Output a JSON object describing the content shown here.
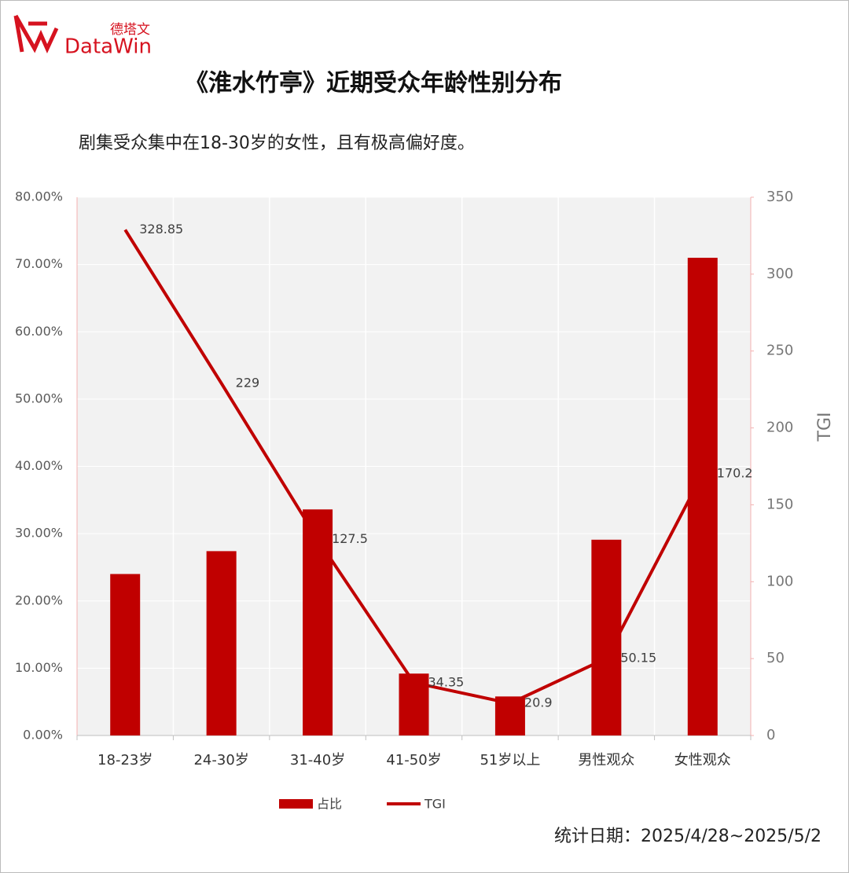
{
  "logo": {
    "cn": "德塔文",
    "en": "DataWin"
  },
  "chart_data": {
    "type": "bar_line",
    "title": "《淮水竹亭》近期受众年龄性别分布",
    "subtitle": "剧集受众集中在18-30岁的女性，且有极高偏好度。",
    "footnote": "统计日期：2025/4/28~2025/5/2",
    "categories": [
      "18-23岁",
      "24-30岁",
      "31-40岁",
      "41-50岁",
      "51岁以上",
      "男性观众",
      "女性观众"
    ],
    "series": [
      {
        "name": "占比",
        "type": "bar",
        "color": "#c00000",
        "values": [
          24.0,
          27.4,
          33.6,
          9.2,
          5.8,
          29.1,
          71.0
        ]
      },
      {
        "name": "TGI",
        "type": "line",
        "axis": "y2",
        "color": "#c00000",
        "values": [
          328.85,
          229,
          127.5,
          34.35,
          20.9,
          50.15,
          170.2
        ]
      }
    ],
    "ylim": [
      0,
      80
    ],
    "yticks": [
      {
        "value": 0,
        "label": "0.00%"
      },
      {
        "value": 10,
        "label": "10.00%"
      },
      {
        "value": 20,
        "label": "20.00%"
      },
      {
        "value": 30,
        "label": "30.00%"
      },
      {
        "value": 40,
        "label": "40.00%"
      },
      {
        "value": 50,
        "label": "50.00%"
      },
      {
        "value": 60,
        "label": "60.00%"
      },
      {
        "value": 70,
        "label": "70.00%"
      },
      {
        "value": 80,
        "label": "80.00%"
      }
    ],
    "y2label": "TGI",
    "y2lim": [
      0,
      350
    ],
    "y2ticks": [
      0,
      50,
      100,
      150,
      200,
      250,
      300,
      350
    ],
    "grid": true,
    "legend": "bottom"
  }
}
